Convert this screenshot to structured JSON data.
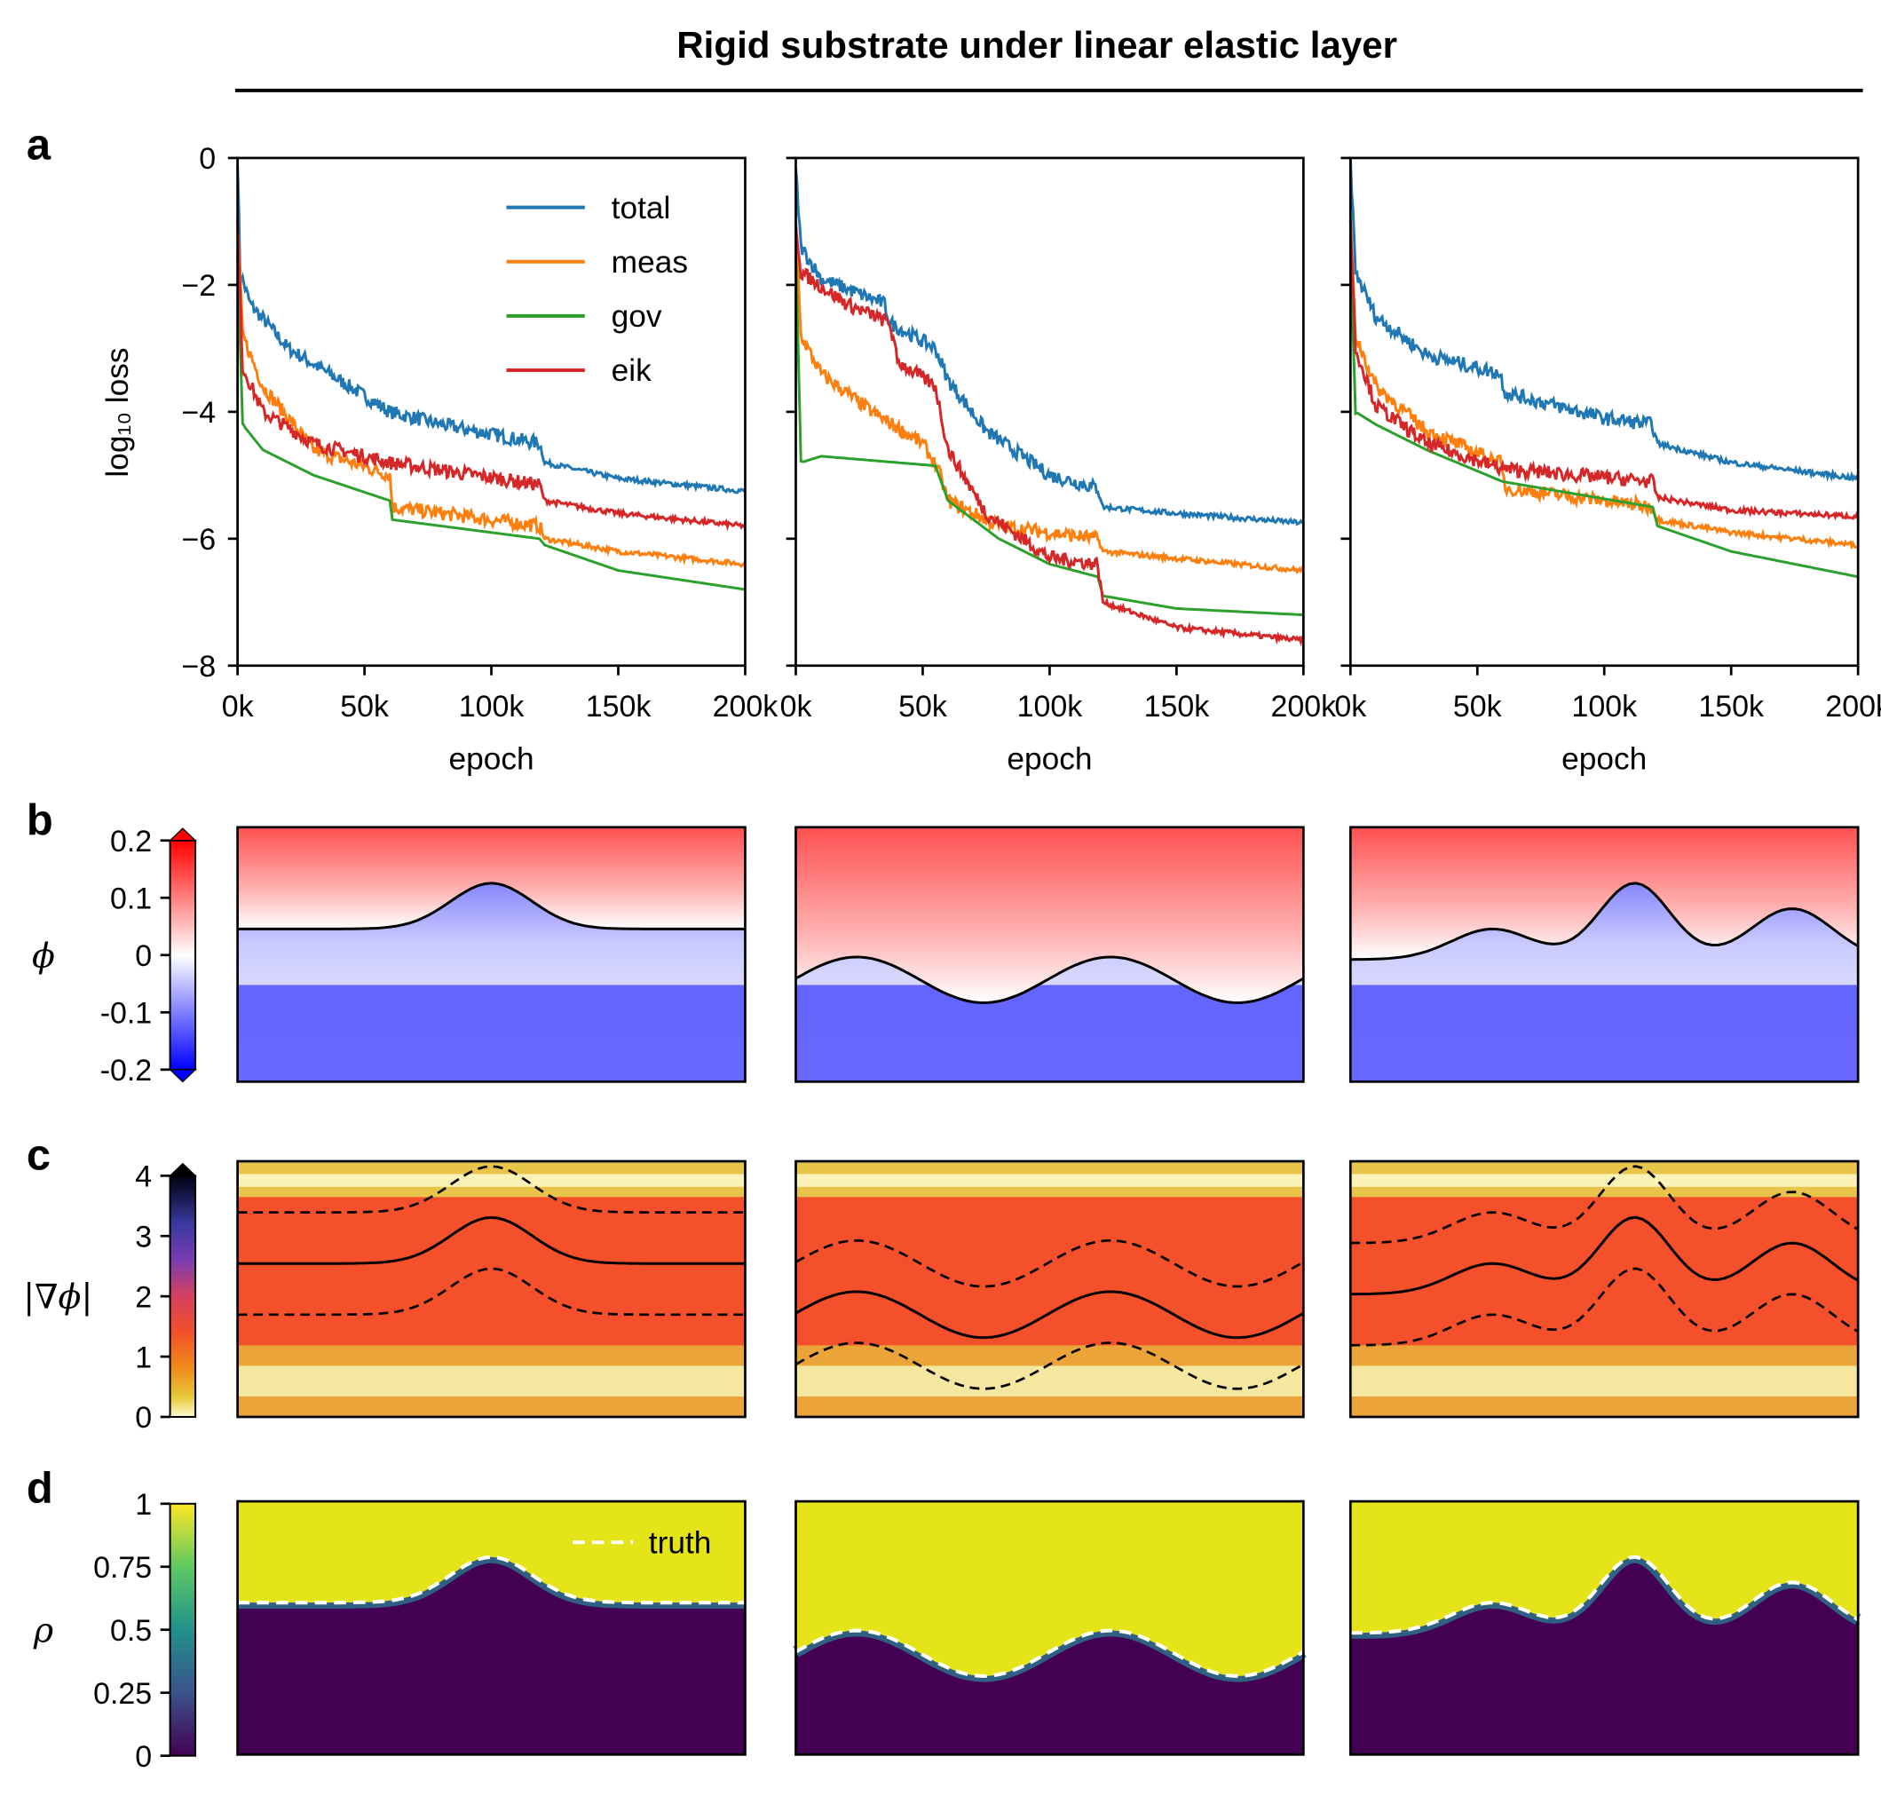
{
  "title": "Rigid substrate under linear elastic layer",
  "panel_labels": [
    "a",
    "b",
    "c",
    "d"
  ],
  "chart_data": [
    {
      "type": "line",
      "panel": "a",
      "ylabel": "log₁₀ loss",
      "xlabel": "epoch",
      "xlim": [
        0,
        200
      ],
      "ylim": [
        -8,
        0
      ],
      "xticks": [
        "0k",
        "50k",
        "100k",
        "150k",
        "200k"
      ],
      "yticks": [
        "0",
        "−2",
        "−4",
        "−6",
        "−8"
      ],
      "legend_placement": "upper-right (first subplot)",
      "series_colors": {
        "total": "#1f77b4",
        "meas": "#ff7f0e",
        "gov": "#2ca02c",
        "eik": "#d62728"
      },
      "legend": [
        "total",
        "meas",
        "gov",
        "eik"
      ],
      "subplots": [
        {
          "series": [
            {
              "name": "total",
              "x": [
                0,
                1,
                5,
                20,
                40,
                60,
                80,
                119,
                121,
                150,
                200
              ],
              "y": [
                0,
                -1.8,
                -2.3,
                -3.0,
                -3.5,
                -4.0,
                -4.2,
                -4.5,
                -4.8,
                -5.05,
                -5.25
              ]
            },
            {
              "name": "meas",
              "x": [
                0,
                2,
                10,
                30,
                60,
                61,
                119,
                121,
                150,
                200
              ],
              "y": [
                -1,
                -2.8,
                -3.6,
                -4.6,
                -5.0,
                -5.5,
                -5.8,
                -6.0,
                -6.2,
                -6.4
              ]
            },
            {
              "name": "gov",
              "x": [
                0,
                2,
                10,
                30,
                60,
                61,
                119,
                121,
                150,
                200
              ],
              "y": [
                -1.5,
                -4.2,
                -4.6,
                -5.0,
                -5.4,
                -5.7,
                -6.0,
                -6.1,
                -6.5,
                -6.8
              ]
            },
            {
              "name": "eik",
              "x": [
                0,
                2,
                10,
                30,
                60,
                119,
                121,
                150,
                200
              ],
              "y": [
                -1,
                -3.3,
                -4.0,
                -4.5,
                -4.8,
                -5.15,
                -5.4,
                -5.6,
                -5.8
              ]
            }
          ]
        },
        {
          "series": [
            {
              "name": "total",
              "x": [
                0,
                2,
                10,
                35,
                37,
                55,
                60,
                75,
                100,
                119,
                121,
                150,
                200
              ],
              "y": [
                -0.2,
                -1.4,
                -1.9,
                -2.3,
                -2.6,
                -3.0,
                -3.5,
                -4.3,
                -5.0,
                -5.2,
                -5.5,
                -5.6,
                -5.75
              ]
            },
            {
              "name": "meas",
              "x": [
                0,
                2,
                10,
                30,
                50,
                56,
                60,
                80,
                119,
                121,
                200
              ],
              "y": [
                -1,
                -2.8,
                -3.4,
                -4.0,
                -4.5,
                -4.9,
                -5.4,
                -5.8,
                -6.0,
                -6.2,
                -6.5
              ]
            },
            {
              "name": "gov",
              "x": [
                0,
                2,
                10,
                55,
                60,
                80,
                100,
                119,
                121,
                150,
                200
              ],
              "y": [
                -1.5,
                -4.8,
                -4.7,
                -4.85,
                -5.4,
                -6.0,
                -6.4,
                -6.6,
                -6.9,
                -7.1,
                -7.2
              ]
            },
            {
              "name": "eik",
              "x": [
                0,
                2,
                20,
                37,
                40,
                55,
                60,
                75,
                100,
                119,
                121,
                150,
                200
              ],
              "y": [
                -1,
                -1.8,
                -2.3,
                -2.6,
                -3.2,
                -3.6,
                -4.6,
                -5.6,
                -6.3,
                -6.4,
                -7.0,
                -7.4,
                -7.6
              ]
            }
          ]
        },
        {
          "series": [
            {
              "name": "total",
              "x": [
                0,
                2,
                10,
                30,
                59,
                61,
                100,
                119,
                121,
                150,
                200
              ],
              "y": [
                0,
                -1.8,
                -2.5,
                -3.1,
                -3.4,
                -3.7,
                -4.1,
                -4.2,
                -4.5,
                -4.8,
                -5.05
              ]
            },
            {
              "name": "meas",
              "x": [
                0,
                2,
                10,
                30,
                59,
                61,
                119,
                121,
                150,
                200
              ],
              "y": [
                -1,
                -2.8,
                -3.6,
                -4.3,
                -4.8,
                -5.2,
                -5.5,
                -5.7,
                -5.9,
                -6.1
              ]
            },
            {
              "name": "gov",
              "x": [
                0,
                2,
                10,
                30,
                60,
                119,
                121,
                150,
                200
              ],
              "y": [
                -1.5,
                -4.0,
                -4.2,
                -4.6,
                -5.1,
                -5.5,
                -5.8,
                -6.2,
                -6.6
              ]
            },
            {
              "name": "eik",
              "x": [
                0,
                2,
                10,
                30,
                60,
                119,
                121,
                150,
                200
              ],
              "y": [
                -1,
                -3.0,
                -3.9,
                -4.5,
                -4.9,
                -5.1,
                -5.35,
                -5.55,
                -5.65
              ]
            }
          ]
        }
      ]
    },
    {
      "type": "heatmap",
      "panel": "b",
      "colorbar_label": "ϕ",
      "colorbar_ticks": [
        "0.2",
        "0.1",
        "0",
        "-0.1",
        "-0.2"
      ],
      "range": [
        -0.2,
        0.2
      ],
      "colormap": "bwr",
      "extend": "both"
    },
    {
      "type": "heatmap",
      "panel": "c",
      "colorbar_label": "|∇ϕ|",
      "colorbar_ticks": [
        "4",
        "3",
        "2",
        "1",
        "0"
      ],
      "range": [
        0,
        4
      ],
      "colormap": "CMRmap_r",
      "extend": "max"
    },
    {
      "type": "heatmap",
      "panel": "d",
      "colorbar_label": "ρ",
      "colorbar_ticks": [
        "1",
        "0.75",
        "0.5",
        "0.25",
        "0"
      ],
      "range": [
        0,
        1
      ],
      "colormap": "viridis",
      "legend": [
        "truth"
      ]
    }
  ]
}
